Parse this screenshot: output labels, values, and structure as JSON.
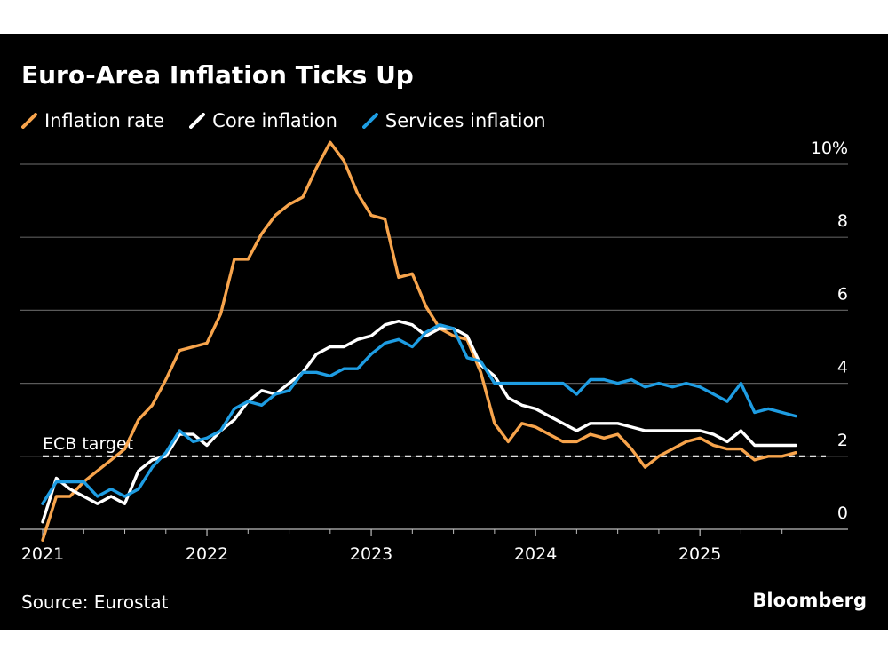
{
  "title": "Euro-Area Inflation Ticks Up",
  "source": "Source: Eurostat",
  "brand": "Bloomberg",
  "colors": {
    "background": "#000000",
    "text": "#ffffff",
    "grid": "#5a5a5a",
    "inflation": "#f7a44c",
    "core": "#ffffff",
    "services": "#1e9de3"
  },
  "chart_data": {
    "type": "line",
    "title": "Euro-Area Inflation Ticks Up",
    "xlabel": "",
    "ylabel": "",
    "x_start": "2021-01",
    "x_ticks": [
      "2021",
      "2022",
      "2023",
      "2024",
      "2025"
    ],
    "y_ticks": [
      "0",
      "2",
      "4",
      "6",
      "8",
      "10%"
    ],
    "ylim": [
      -0.3,
      10.5
    ],
    "grid": true,
    "legend_placement": "top-left",
    "reference_line": {
      "label": "ECB target",
      "value": 2
    },
    "series": [
      {
        "name": "Inflation rate",
        "color": "#f7a44c",
        "values": [
          -0.3,
          0.9,
          0.9,
          1.3,
          1.6,
          1.9,
          2.2,
          3.0,
          3.4,
          4.1,
          4.9,
          5.0,
          5.1,
          5.9,
          7.4,
          7.4,
          8.1,
          8.6,
          8.9,
          9.1,
          9.9,
          10.6,
          10.1,
          9.2,
          8.6,
          8.5,
          6.9,
          7.0,
          6.1,
          5.5,
          5.3,
          5.2,
          4.3,
          2.9,
          2.4,
          2.9,
          2.8,
          2.6,
          2.4,
          2.4,
          2.6,
          2.5,
          2.6,
          2.2,
          1.7,
          2.0,
          2.2,
          2.4,
          2.5,
          2.3,
          2.2,
          2.2,
          1.9,
          2.0,
          2.0,
          2.1
        ]
      },
      {
        "name": "Core inflation",
        "color": "#ffffff",
        "values": [
          0.2,
          1.4,
          1.1,
          0.9,
          0.7,
          0.9,
          0.7,
          1.6,
          1.9,
          2.0,
          2.6,
          2.6,
          2.3,
          2.7,
          3.0,
          3.5,
          3.8,
          3.7,
          4.0,
          4.3,
          4.8,
          5.0,
          5.0,
          5.2,
          5.3,
          5.6,
          5.7,
          5.6,
          5.3,
          5.5,
          5.5,
          5.3,
          4.5,
          4.2,
          3.6,
          3.4,
          3.3,
          3.1,
          2.9,
          2.7,
          2.9,
          2.9,
          2.9,
          2.8,
          2.7,
          2.7,
          2.7,
          2.7,
          2.7,
          2.6,
          2.4,
          2.7,
          2.3,
          2.3,
          2.3,
          2.3
        ]
      },
      {
        "name": "Services inflation",
        "color": "#1e9de3",
        "values": [
          0.7,
          1.3,
          1.3,
          1.3,
          0.9,
          1.1,
          0.9,
          1.1,
          1.7,
          2.1,
          2.7,
          2.4,
          2.5,
          2.7,
          3.3,
          3.5,
          3.4,
          3.7,
          3.8,
          4.3,
          4.3,
          4.2,
          4.4,
          4.4,
          4.8,
          5.1,
          5.2,
          5.0,
          5.4,
          5.6,
          5.5,
          4.7,
          4.6,
          4.0,
          4.0,
          4.0,
          4.0,
          4.0,
          4.0,
          3.7,
          4.1,
          4.1,
          4.0,
          4.1,
          3.9,
          4.0,
          3.9,
          4.0,
          3.9,
          3.7,
          3.5,
          4.0,
          3.2,
          3.3,
          3.2,
          3.1
        ]
      }
    ]
  },
  "legend": [
    {
      "label": "Inflation rate",
      "color": "#f7a44c"
    },
    {
      "label": "Core inflation",
      "color": "#ffffff"
    },
    {
      "label": "Services inflation",
      "color": "#1e9de3"
    }
  ]
}
